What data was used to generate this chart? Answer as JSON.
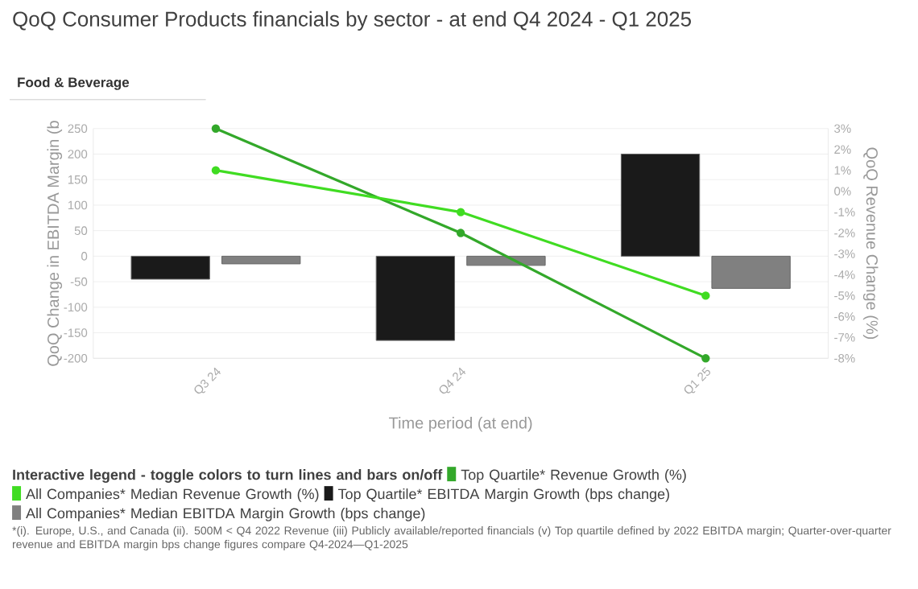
{
  "chart_data": {
    "type": "bar",
    "title": "QoQ Consumer Products financials by sector - at end Q4 2024 - Q1 2025",
    "xlabel": "Time period (at end)",
    "ylabel": "QoQ Change in EBITDA Margin (b",
    "y2label": "QoQ Revenue Change (%)",
    "legend_title": "Interactive legend - toggle colors to turn lines and bars on/off",
    "annotations": [
      "Food & Beverage",
      "*(i). Europe, U.S., and Canada (ii). 500M < Q4 2022 Revenue (iii) Publicly available/reported financials (v) Top quartile defined by 2022 EBITDA margin; Quarter-over-quarter revenue and EBITDA margin bps change figures compare Q4-2024—Q1-2025"
    ],
    "categories": [
      "Q3 24",
      "Q4 24",
      "Q1 25"
    ],
    "series": [
      {
        "name": "Top Quartile* Revenue Growth (%)",
        "type": "line",
        "axis": "y2",
        "color": "#33a82a",
        "values": [
          3,
          -2,
          -8
        ]
      },
      {
        "name": "All Companies* Median Revenue Growth (%)",
        "type": "line",
        "axis": "y2",
        "color": "#40dc22",
        "values": [
          1,
          -1,
          -5
        ]
      },
      {
        "name": "Top Quartile* EBITDA Margin Growth (bps change)",
        "color": "#1a1a1a",
        "values": [
          -45,
          -165,
          200
        ]
      },
      {
        "name": "All Companies* Median EBITDA Margin Growth (bps change)",
        "color": "#808080",
        "values": [
          -15,
          -18,
          -63
        ]
      }
    ],
    "ylim": [
      -200,
      250
    ],
    "yticks": [
      -200,
      -150,
      -100,
      -50,
      0,
      50,
      100,
      150,
      200,
      250
    ],
    "y2lim": [
      -8,
      3
    ],
    "y2ticks": [
      {
        "value": -8,
        "label": "-8%"
      },
      {
        "value": -7,
        "label": "-7%"
      },
      {
        "value": -6,
        "label": "-6%"
      },
      {
        "value": -5,
        "label": "-5%"
      },
      {
        "value": -4,
        "label": "-4%"
      },
      {
        "value": -3,
        "label": "-3%"
      },
      {
        "value": -2,
        "label": "-2%"
      },
      {
        "value": -1,
        "label": "-1%"
      },
      {
        "value": 0,
        "label": "0%"
      },
      {
        "value": 1,
        "label": "1%"
      },
      {
        "value": 2,
        "label": "2%"
      },
      {
        "value": 3,
        "label": "3%"
      }
    ],
    "grid": "y",
    "legend": "bottom",
    "marker": "circle",
    "line_style": "solid"
  }
}
